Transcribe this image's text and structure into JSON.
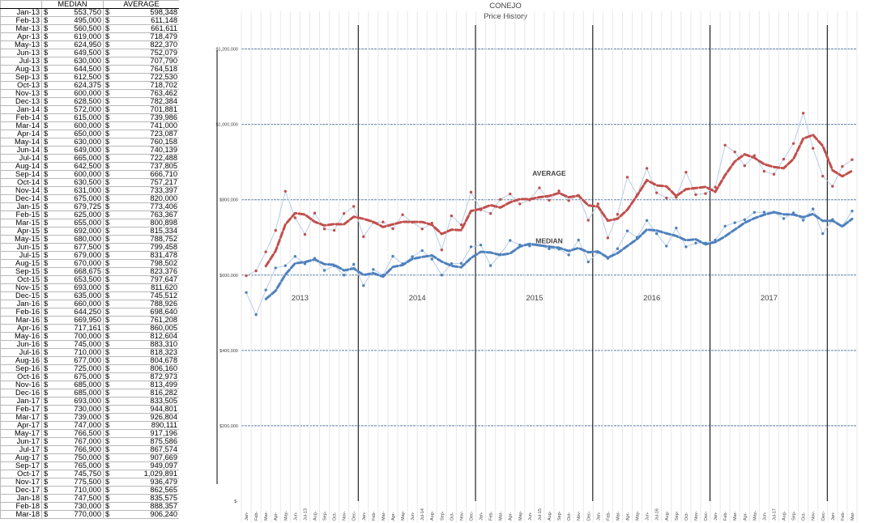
{
  "sheet": {
    "headers": [
      "MEDIAN",
      "AVERAGE"
    ],
    "currency": "$",
    "rows": [
      [
        "Jan-13",
        "553,750",
        "598,348"
      ],
      [
        "Feb-13",
        "495,000",
        "611,148"
      ],
      [
        "Mar-13",
        "560,500",
        "661,611"
      ],
      [
        "Apr-13",
        "619,000",
        "718,479"
      ],
      [
        "May-13",
        "624,950",
        "822,370"
      ],
      [
        "Jun-13",
        "649,500",
        "752,079"
      ],
      [
        "Jul-13",
        "630,000",
        "707,790"
      ],
      [
        "Aug-13",
        "644,500",
        "764,518"
      ],
      [
        "Sep-13",
        "612,500",
        "722,530"
      ],
      [
        "Oct-13",
        "624,375",
        "718,702"
      ],
      [
        "Nov-13",
        "600,000",
        "763,462"
      ],
      [
        "Dec-13",
        "628,500",
        "782,384"
      ],
      [
        "Jan-14",
        "572,000",
        "701,881"
      ],
      [
        "Feb-14",
        "615,000",
        "739,986"
      ],
      [
        "Mar-14",
        "600,000",
        "741,000"
      ],
      [
        "Apr-14",
        "650,000",
        "723,087"
      ],
      [
        "May-14",
        "630,000",
        "760,158"
      ],
      [
        "Jun-14",
        "649,000",
        "740,139"
      ],
      [
        "Jul-14",
        "665,000",
        "722,488"
      ],
      [
        "Aug-14",
        "642,500",
        "737,805"
      ],
      [
        "Sep-14",
        "600,000",
        "666,710"
      ],
      [
        "Oct-14",
        "630,500",
        "757,217"
      ],
      [
        "Nov-14",
        "631,000",
        "733,397"
      ],
      [
        "Dec-14",
        "675,000",
        "820,000"
      ],
      [
        "Jan-15",
        "679,725",
        "773,406"
      ],
      [
        "Feb-15",
        "625,000",
        "763,367"
      ],
      [
        "Mar-15",
        "655,000",
        "800,898"
      ],
      [
        "Apr-15",
        "692,000",
        "815,334"
      ],
      [
        "May-15",
        "680,000",
        "788,752"
      ],
      [
        "Jun-15",
        "677,500",
        "799,458"
      ],
      [
        "Jul-15",
        "679,000",
        "831,478"
      ],
      [
        "Aug-15",
        "670,000",
        "798,502"
      ],
      [
        "Sep-15",
        "668,675",
        "823,376"
      ],
      [
        "Oct-15",
        "653,500",
        "797,647"
      ],
      [
        "Nov-15",
        "693,000",
        "811,620"
      ],
      [
        "Dec-15",
        "635,000",
        "745,512"
      ],
      [
        "Jan-16",
        "660,000",
        "788,926"
      ],
      [
        "Feb-16",
        "644,250",
        "698,640"
      ],
      [
        "Mar-16",
        "669,950",
        "761,208"
      ],
      [
        "Apr-16",
        "717,161",
        "860,005"
      ],
      [
        "May-16",
        "700,000",
        "812,604"
      ],
      [
        "Jun-16",
        "745,000",
        "883,310"
      ],
      [
        "Jul-16",
        "710,000",
        "818,323"
      ],
      [
        "Aug-16",
        "677,000",
        "804,678"
      ],
      [
        "Sep-16",
        "725,000",
        "806,160"
      ],
      [
        "Oct-16",
        "675,000",
        "872,973"
      ],
      [
        "Nov-16",
        "685,000",
        "813,499"
      ],
      [
        "Dec-16",
        "685,000",
        "816,282"
      ],
      [
        "Jan-17",
        "693,000",
        "833,505"
      ],
      [
        "Feb-17",
        "730,000",
        "944,801"
      ],
      [
        "Mar-17",
        "739,000",
        "926,804"
      ],
      [
        "Apr-17",
        "747,000",
        "890,111"
      ],
      [
        "May-17",
        "766,500",
        "917,196"
      ],
      [
        "Jun-17",
        "767,000",
        "875,586"
      ],
      [
        "Jul-17",
        "766,900",
        "867,574"
      ],
      [
        "Aug-17",
        "750,000",
        "907,669"
      ],
      [
        "Sep-17",
        "765,000",
        "949,097"
      ],
      [
        "Oct-17",
        "745,750",
        "1,029,891"
      ],
      [
        "Nov-17",
        "775,500",
        "936,479"
      ],
      [
        "Dec-17",
        "710,000",
        "862,565"
      ],
      [
        "Jan-18",
        "747,500",
        "835,575"
      ],
      [
        "Feb-18",
        "730,000",
        "888,357"
      ],
      [
        "Mar-18",
        "770,000",
        "906,240"
      ]
    ]
  },
  "colors": {
    "average": "#c0504d",
    "median": "#4f81bd",
    "raw_line": "#b9cde6",
    "gridline": "#5b7fa6",
    "year_line": "#000000"
  },
  "chart_data": {
    "type": "line",
    "title": "CONEJO",
    "subtitle": "Price History",
    "ylim": [
      0,
      1300000
    ],
    "y_ticks": [
      0,
      200000,
      400000,
      600000,
      800000,
      1000000,
      1200000
    ],
    "y_tick_labels": [
      "$-",
      "$200,000",
      "$400,000",
      "$600,000",
      "$800,000",
      "$1,000,000",
      "$1,200,000"
    ],
    "x": [
      "Jan-13",
      "Feb-13",
      "Mar-13",
      "Apr-13",
      "May-13",
      "Jun-13",
      "Jul-13",
      "Aug-13",
      "Sep-13",
      "Oct-13",
      "Nov-13",
      "Dec-13",
      "Jan-14",
      "Feb-14",
      "Mar-14",
      "Apr-14",
      "May-14",
      "Jun-14",
      "Jul-14",
      "Aug-14",
      "Sep-14",
      "Oct-14",
      "Nov-14",
      "Dec-14",
      "Jan-15",
      "Feb-15",
      "Mar-15",
      "Apr-15",
      "May-15",
      "Jun-15",
      "Jul-15",
      "Aug-15",
      "Sep-15",
      "Oct-15",
      "Nov-15",
      "Dec-15",
      "Jan-16",
      "Feb-16",
      "Mar-16",
      "Apr-16",
      "May-16",
      "Jun-16",
      "Jul-16",
      "Aug-16",
      "Sep-16",
      "Oct-16",
      "Nov-16",
      "Dec-16",
      "Jan-17",
      "Feb-17",
      "Mar-17",
      "Apr-17",
      "May-17",
      "Jun-17",
      "Jul-17",
      "Aug-17",
      "Sep-17",
      "Oct-17",
      "Nov-17",
      "Dec-17",
      "Jan-18",
      "Feb-18",
      "Mar-18"
    ],
    "x_tick_labels": [
      "Jan-",
      "Feb-",
      "Mar-",
      "Apr-",
      "May-",
      "Jun-",
      "Jul-13",
      "Aug-",
      "Sep-",
      "Oct-",
      "Nov-",
      "Dec-",
      "Jan-",
      "Feb-",
      "Mar-",
      "Apr-",
      "May-",
      "Jun-",
      "Jul-14",
      "Aug-",
      "Sep-",
      "Oct-",
      "Nov-",
      "Dec-",
      "Jan-",
      "Feb-",
      "Mar-",
      "Apr-",
      "May-",
      "Jun-",
      "Jul-15",
      "Aug-",
      "Sep-",
      "Oct-",
      "Nov-",
      "Dec-",
      "Jan-",
      "Feb-",
      "Mar-",
      "Apr-",
      "May-",
      "Jun-",
      "Jul-16",
      "Aug-",
      "Sep-",
      "Oct-",
      "Nov-",
      "Dec-",
      "Jan-",
      "Feb-",
      "Mar-",
      "Apr-",
      "May-",
      "Jun-",
      "Jul-17",
      "Aug-",
      "Sep-",
      "Oct-",
      "Nov-",
      "Dec-",
      "Jan-",
      "Feb-",
      "Mar-"
    ],
    "series": [
      {
        "name": "AVERAGE",
        "values": [
          598348,
          611148,
          661611,
          718479,
          822370,
          752079,
          707790,
          764518,
          722530,
          718702,
          763462,
          782384,
          701881,
          739986,
          741000,
          723087,
          760158,
          740139,
          722488,
          737805,
          666710,
          757217,
          733397,
          820000,
          773406,
          763367,
          800898,
          815334,
          788752,
          799458,
          831478,
          798502,
          823376,
          797647,
          811620,
          745512,
          788926,
          698640,
          761208,
          860005,
          812604,
          883310,
          818323,
          804678,
          806160,
          872973,
          813499,
          816282,
          833505,
          944801,
          926804,
          890111,
          917196,
          875586,
          867574,
          907669,
          949097,
          1029891,
          936479,
          862565,
          835575,
          888357,
          906240
        ]
      },
      {
        "name": "MEDIAN",
        "values": [
          553750,
          495000,
          560500,
          619000,
          624950,
          649500,
          630000,
          644500,
          612500,
          624375,
          600000,
          628500,
          572000,
          615000,
          600000,
          650000,
          630000,
          649000,
          665000,
          642500,
          600000,
          630500,
          631000,
          675000,
          679725,
          625000,
          655000,
          692000,
          680000,
          677500,
          679000,
          670000,
          668675,
          653500,
          693000,
          635000,
          660000,
          644250,
          669950,
          717161,
          700000,
          745000,
          710000,
          677000,
          725000,
          675000,
          685000,
          685000,
          693000,
          730000,
          739000,
          747000,
          766500,
          767000,
          766900,
          750000,
          765000,
          745750,
          775500,
          710000,
          747500,
          730000,
          770000
        ]
      }
    ],
    "year_labels": [
      "2013",
      "2014",
      "2015",
      "2016",
      "2017"
    ],
    "year_boundaries_after_index": [
      11,
      23,
      35,
      47,
      59
    ],
    "trend_window": 3,
    "grid": true
  }
}
